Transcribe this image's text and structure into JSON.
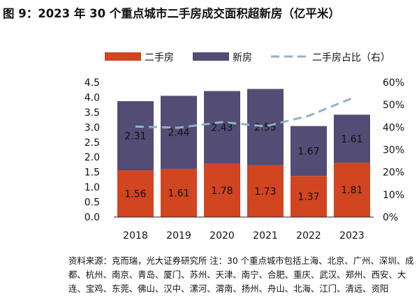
{
  "title": "图 9：2023 年 30 个重点城市二手房成交面积超新房（亿平米）",
  "note": "资料来源：克而瑞，光大证券研究所  注：30 个重点城市包括上海、北京、广州、深圳、成都、杭州、南京、青岛、厦门、苏州、天津、南宁、合肥、重庆、武汉、郑州、西安、大连、宝鸡、东莞、佛山、汉中、漯河、渭南、扬州、舟山、北海、江门、清远、资阳",
  "chart_data": {
    "type": "bar",
    "stacked": true,
    "categories": [
      "2018",
      "2019",
      "2020",
      "2021",
      "2022",
      "2023"
    ],
    "series": [
      {
        "name": "二手房",
        "type": "bar",
        "axis": "left",
        "color": "#D14520",
        "values": [
          1.56,
          1.61,
          1.78,
          1.73,
          1.37,
          1.81
        ],
        "labels": [
          "1.56",
          "1.61",
          "1.78",
          "1.73",
          "1.37",
          "1.81"
        ]
      },
      {
        "name": "新房",
        "type": "bar",
        "axis": "left",
        "color": "#534C74",
        "values": [
          2.31,
          2.44,
          2.43,
          2.55,
          1.67,
          1.61
        ],
        "labels": [
          "2.31",
          "2.44",
          "2.43",
          "2.55",
          "1.67",
          "1.61"
        ]
      },
      {
        "name": "二手房占比（右）",
        "type": "line",
        "dashed": true,
        "axis": "right",
        "color": "#8DB3C9",
        "values": [
          40.3,
          39.8,
          42.3,
          40.4,
          45.1,
          52.9
        ]
      }
    ],
    "ylim_left": [
      0,
      4.5
    ],
    "yticks_left": [
      "0.0",
      "0.5",
      "1.0",
      "1.5",
      "2.0",
      "2.5",
      "3.0",
      "3.5",
      "4.0",
      "4.5"
    ],
    "ylim_right": [
      0,
      60
    ],
    "yticks_right": [
      "0%",
      "10%",
      "20%",
      "30%",
      "40%",
      "50%",
      "60%"
    ],
    "grid": false,
    "legend_placement": "top"
  }
}
